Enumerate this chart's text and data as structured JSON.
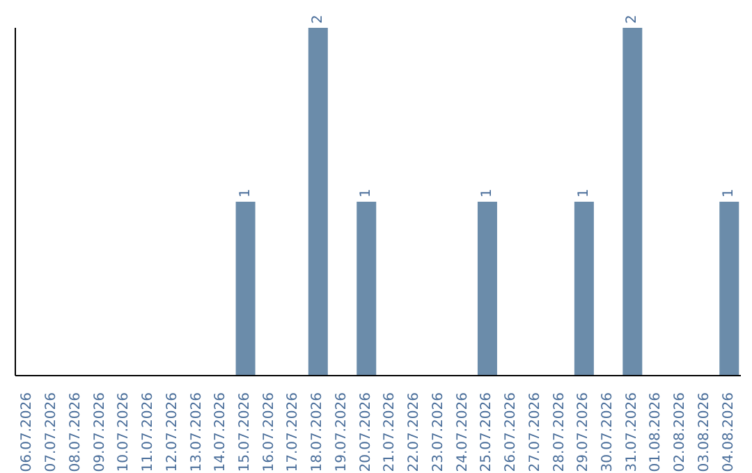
{
  "chart_data": {
    "type": "bar",
    "categories": [
      "06.07.2026",
      "07.07.2026",
      "08.07.2026",
      "09.07.2026",
      "10.07.2026",
      "11.07.2026",
      "12.07.2026",
      "13.07.2026",
      "14.07.2026",
      "15.07.2026",
      "16.07.2026",
      "17.07.2026",
      "18.07.2026",
      "19.07.2026",
      "20.07.2026",
      "21.07.2026",
      "22.07.2026",
      "23.07.2026",
      "24.07.2026",
      "25.07.2026",
      "26.07.2026",
      "27.07.2026",
      "28.07.2026",
      "29.07.2026",
      "30.07.2026",
      "31.07.2026",
      "01.08.2026",
      "02.08.2026",
      "03.08.2026",
      "04.08.2026"
    ],
    "values": [
      0,
      0,
      0,
      0,
      0,
      0,
      0,
      0,
      0,
      1,
      0,
      0,
      2,
      0,
      1,
      0,
      0,
      0,
      0,
      1,
      0,
      0,
      0,
      1,
      0,
      2,
      0,
      0,
      0,
      1
    ],
    "value_labels": [
      null,
      null,
      null,
      null,
      null,
      null,
      null,
      null,
      null,
      "1",
      null,
      null,
      "2",
      null,
      "1",
      null,
      null,
      null,
      null,
      "1",
      null,
      null,
      null,
      "1",
      null,
      "2",
      null,
      null,
      null,
      "1"
    ],
    "color": "#6b8caa",
    "ylim": [
      0,
      2
    ],
    "tick_labels": "x",
    "grid": false,
    "legend": false
  }
}
